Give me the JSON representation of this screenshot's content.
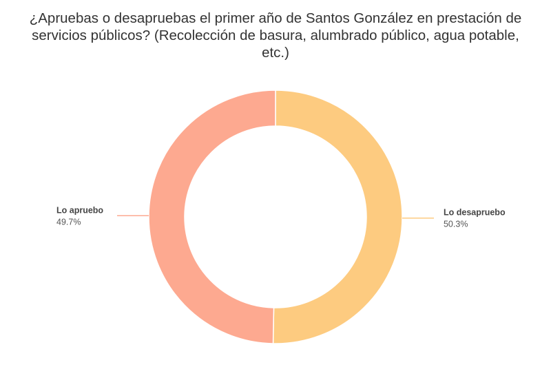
{
  "chart_data": {
    "type": "pie",
    "title": "¿Apruebas o desapruebas el primer año de Santos González en prestación de servicios públicos? (Recolección de basura, alumbrado público, agua potable, etc.)",
    "donut": true,
    "slices": [
      {
        "label": "Lo desapruebo",
        "value": 50.3,
        "value_label": "50.3%",
        "color": "#fdcb80"
      },
      {
        "label": "Lo apruebo",
        "value": 49.7,
        "value_label": "49.7%",
        "color": "#fda990"
      }
    ],
    "start_angle": "12 o'clock",
    "direction": "clockwise"
  }
}
